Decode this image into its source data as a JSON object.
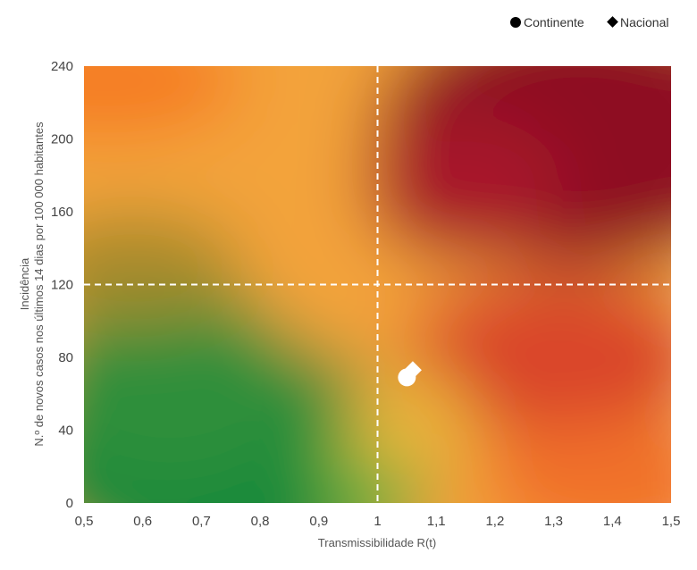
{
  "chart_data": {
    "type": "scatter",
    "title": "",
    "xlabel": "Transmissibilidade R(t)",
    "ylabel_line1": "Incidência",
    "ylabel_line2": "N.º de novos casos nos últimos 14 dias por 100 000 habitantes",
    "xlim": [
      0.5,
      1.5
    ],
    "ylim": [
      0,
      240
    ],
    "x_ticks": [
      0.5,
      0.6,
      0.7,
      0.8,
      0.9,
      1.0,
      1.1,
      1.2,
      1.3,
      1.4,
      1.5
    ],
    "x_tick_labels": [
      "0,5",
      "0,6",
      "0,7",
      "0,8",
      "0,9",
      "1",
      "1,1",
      "1,2",
      "1,3",
      "1,4",
      "1,5"
    ],
    "y_ticks": [
      0,
      40,
      80,
      120,
      160,
      200,
      240
    ],
    "y_tick_labels": [
      "0",
      "40",
      "80",
      "120",
      "160",
      "200",
      "240"
    ],
    "reference_lines": {
      "x": 1,
      "y": 120
    },
    "legend_position": "top-right",
    "background": "risk-gradient green (bottom-left) to dark red (top-right)",
    "series": [
      {
        "name": "Continente",
        "marker": "circle",
        "color": "#ffffff",
        "legend_color": "#000000",
        "points": [
          {
            "x": 1.05,
            "y": 69
          }
        ]
      },
      {
        "name": "Nacional",
        "marker": "diamond",
        "color": "#ffffff",
        "legend_color": "#000000",
        "points": [
          {
            "x": 1.06,
            "y": 73
          }
        ]
      }
    ]
  }
}
